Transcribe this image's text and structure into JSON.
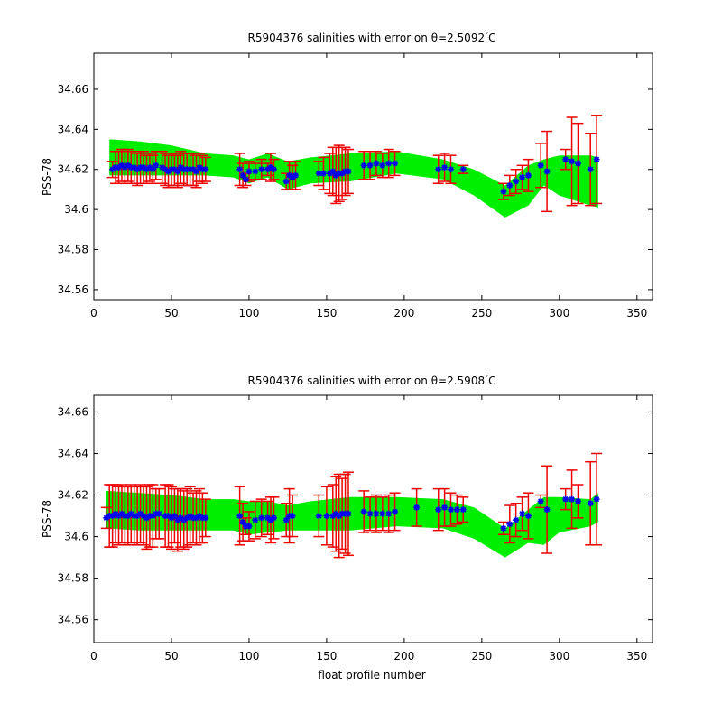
{
  "colors": {
    "envelope": "#00ee00",
    "error_bars": "#ee0000",
    "points": "#0000ee",
    "axes": "#000000",
    "background": "#ffffff"
  },
  "chart_data": [
    {
      "type": "errorbar",
      "title_prefix": "R5904376 salinities with error on θ=2.5092",
      "title_degree": "°",
      "title_suffix": "C",
      "xlabel": "",
      "ylabel": "PSS-78",
      "xlim": [
        0,
        360
      ],
      "ylim": [
        34.555,
        34.678
      ],
      "xticks": [
        0,
        50,
        100,
        150,
        200,
        250,
        300,
        350
      ],
      "xtick_labels": [
        "0",
        "50",
        "100",
        "150",
        "200",
        "250",
        "300",
        "350"
      ],
      "yticks": [
        34.56,
        34.58,
        34.6,
        34.62,
        34.64,
        34.66
      ],
      "ytick_labels": [
        "34.56",
        "34.58",
        "34.6",
        "34.62",
        "34.64",
        "34.66"
      ],
      "grid": false,
      "envelope": {
        "x": [
          10,
          30,
          50,
          72,
          90,
          100,
          112,
          125,
          140,
          165,
          195,
          225,
          245,
          265,
          280,
          290,
          300,
          320,
          325
        ],
        "upper": [
          34.635,
          34.634,
          34.632,
          34.628,
          34.627,
          34.625,
          34.628,
          34.624,
          34.626,
          34.628,
          34.629,
          34.625,
          34.62,
          34.612,
          34.622,
          34.625,
          34.627,
          34.627,
          34.626
        ],
        "lower": [
          34.617,
          34.617,
          34.617,
          34.617,
          34.616,
          34.613,
          34.616,
          34.61,
          34.613,
          34.614,
          34.618,
          34.615,
          34.607,
          34.596,
          34.602,
          34.612,
          34.607,
          34.602,
          34.601
        ]
      },
      "points": {
        "x": [
          12,
          14,
          16,
          18,
          20,
          22,
          24,
          26,
          28,
          30,
          32,
          34,
          36,
          38,
          40,
          44,
          46,
          48,
          50,
          52,
          54,
          56,
          58,
          60,
          62,
          64,
          66,
          68,
          70,
          72,
          94,
          96,
          98,
          100,
          104,
          108,
          112,
          114,
          116,
          124,
          126,
          128,
          130,
          145,
          148,
          152,
          154,
          156,
          158,
          160,
          162,
          164,
          174,
          178,
          182,
          186,
          190,
          194,
          222,
          226,
          230,
          238,
          264,
          268,
          272,
          276,
          280,
          288,
          292,
          304,
          308,
          312,
          320,
          324
        ],
        "y": [
          34.62,
          34.621,
          34.621,
          34.622,
          34.621,
          34.622,
          34.621,
          34.621,
          34.62,
          34.621,
          34.621,
          34.62,
          34.621,
          34.62,
          34.622,
          34.621,
          34.62,
          34.619,
          34.62,
          34.62,
          34.619,
          34.621,
          34.62,
          34.62,
          34.62,
          34.62,
          34.619,
          34.621,
          34.62,
          34.62,
          34.62,
          34.617,
          34.615,
          34.619,
          34.619,
          34.62,
          34.62,
          34.621,
          34.62,
          34.614,
          34.617,
          34.616,
          34.617,
          34.618,
          34.618,
          34.618,
          34.619,
          34.617,
          34.618,
          34.618,
          34.619,
          34.619,
          34.622,
          34.622,
          34.623,
          34.622,
          34.623,
          34.623,
          34.62,
          34.621,
          34.62,
          34.62,
          34.609,
          34.612,
          34.614,
          34.616,
          34.617,
          34.622,
          34.619,
          34.625,
          34.624,
          34.623,
          34.62,
          34.625
        ],
        "err": [
          0.004,
          0.008,
          0.008,
          0.008,
          0.008,
          0.008,
          0.008,
          0.008,
          0.008,
          0.008,
          0.008,
          0.007,
          0.007,
          0.007,
          0.007,
          0.008,
          0.008,
          0.008,
          0.008,
          0.008,
          0.008,
          0.008,
          0.008,
          0.008,
          0.008,
          0.008,
          0.008,
          0.007,
          0.007,
          0.006,
          0.008,
          0.006,
          0.003,
          0.005,
          0.004,
          0.005,
          0.003,
          0.007,
          0.005,
          0.004,
          0.007,
          0.006,
          0.007,
          0.006,
          0.008,
          0.01,
          0.012,
          0.014,
          0.014,
          0.013,
          0.012,
          0.011,
          0.007,
          0.007,
          0.006,
          0.006,
          0.007,
          0.006,
          0.007,
          0.007,
          0.007,
          0.002,
          0.004,
          0.005,
          0.006,
          0.006,
          0.008,
          0.011,
          0.02,
          0.005,
          0.022,
          0.02,
          0.018,
          0.022
        ]
      }
    },
    {
      "type": "errorbar",
      "title_prefix": "R5904376 salinities with error on θ=2.5908",
      "title_degree": "°",
      "title_suffix": "C",
      "xlabel": "float profile number",
      "ylabel": "PSS-78",
      "xlim": [
        0,
        360
      ],
      "ylim": [
        34.549,
        34.668
      ],
      "xticks": [
        0,
        50,
        100,
        150,
        200,
        250,
        300,
        350
      ],
      "xtick_labels": [
        "0",
        "50",
        "100",
        "150",
        "200",
        "250",
        "300",
        "350"
      ],
      "yticks": [
        34.56,
        34.58,
        34.6,
        34.62,
        34.64,
        34.66
      ],
      "ytick_labels": [
        "34.56",
        "34.58",
        "34.6",
        "34.62",
        "34.64",
        "34.66"
      ],
      "grid": false,
      "envelope": {
        "x": [
          8,
          30,
          50,
          72,
          90,
          100,
          112,
          125,
          140,
          165,
          195,
          225,
          245,
          265,
          280,
          290,
          300,
          320,
          325
        ],
        "upper": [
          34.622,
          34.621,
          34.62,
          34.618,
          34.618,
          34.617,
          34.617,
          34.615,
          34.617,
          34.619,
          34.619,
          34.618,
          34.614,
          34.604,
          34.613,
          34.619,
          34.619,
          34.618,
          34.621
        ],
        "lower": [
          34.604,
          34.603,
          34.603,
          34.603,
          34.603,
          34.601,
          34.602,
          34.603,
          34.603,
          34.603,
          34.605,
          34.604,
          34.599,
          34.59,
          34.597,
          34.596,
          34.602,
          34.605,
          34.607
        ]
      },
      "points": {
        "x": [
          8,
          10,
          12,
          14,
          16,
          18,
          20,
          22,
          24,
          26,
          28,
          30,
          32,
          34,
          36,
          38,
          40,
          42,
          46,
          48,
          50,
          52,
          54,
          56,
          58,
          60,
          62,
          64,
          66,
          68,
          70,
          72,
          94,
          96,
          98,
          100,
          104,
          108,
          112,
          114,
          116,
          124,
          126,
          128,
          145,
          150,
          154,
          156,
          158,
          160,
          162,
          164,
          174,
          178,
          182,
          186,
          190,
          194,
          208,
          222,
          226,
          230,
          234,
          238,
          264,
          268,
          272,
          276,
          280,
          288,
          292,
          304,
          308,
          312,
          320,
          324
        ],
        "y": [
          34.609,
          34.61,
          34.61,
          34.611,
          34.61,
          34.611,
          34.61,
          34.61,
          34.611,
          34.61,
          34.61,
          34.611,
          34.61,
          34.609,
          34.61,
          34.61,
          34.611,
          34.611,
          34.61,
          34.61,
          34.609,
          34.61,
          34.608,
          34.609,
          34.608,
          34.609,
          34.61,
          34.609,
          34.609,
          34.61,
          34.609,
          34.609,
          34.61,
          34.607,
          34.605,
          34.605,
          34.608,
          34.609,
          34.609,
          34.608,
          34.609,
          34.608,
          34.61,
          34.61,
          34.61,
          34.61,
          34.61,
          34.611,
          34.61,
          34.611,
          34.611,
          34.611,
          34.612,
          34.611,
          34.611,
          34.611,
          34.611,
          34.612,
          34.614,
          34.613,
          34.614,
          34.613,
          34.613,
          34.613,
          34.604,
          34.606,
          34.608,
          34.611,
          34.61,
          34.617,
          34.613,
          34.618,
          34.618,
          34.617,
          34.616,
          34.618
        ],
        "err": [
          0.005,
          0.015,
          0.015,
          0.014,
          0.014,
          0.014,
          0.014,
          0.014,
          0.014,
          0.014,
          0.014,
          0.014,
          0.014,
          0.015,
          0.015,
          0.015,
          0.012,
          0.012,
          0.015,
          0.015,
          0.015,
          0.013,
          0.015,
          0.014,
          0.014,
          0.014,
          0.014,
          0.012,
          0.013,
          0.013,
          0.012,
          0.009,
          0.014,
          0.009,
          0.004,
          0.007,
          0.009,
          0.009,
          0.008,
          0.011,
          0.01,
          0.008,
          0.013,
          0.01,
          0.01,
          0.014,
          0.015,
          0.018,
          0.02,
          0.017,
          0.019,
          0.02,
          0.01,
          0.008,
          0.009,
          0.008,
          0.009,
          0.009,
          0.009,
          0.01,
          0.009,
          0.008,
          0.007,
          0.006,
          0.003,
          0.009,
          0.008,
          0.008,
          0.011,
          0.003,
          0.021,
          0.005,
          0.014,
          0.008,
          0.02,
          0.022
        ]
      }
    }
  ]
}
